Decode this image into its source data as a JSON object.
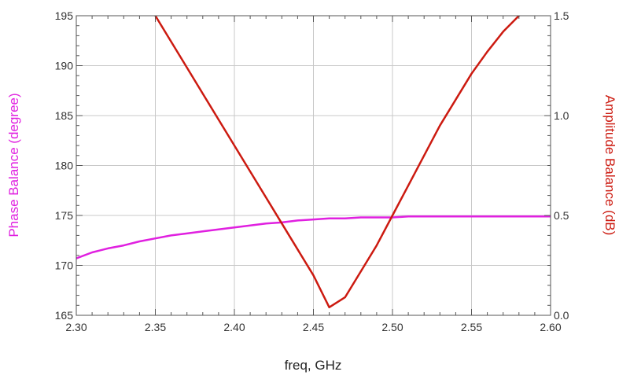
{
  "chart_data": {
    "type": "line",
    "title": "",
    "xlabel": "freq, GHz",
    "ylabel_left": "Phase Balance (degree)",
    "ylabel_right": "Amplitude Balance (dB)",
    "xlim": [
      2.3,
      2.6
    ],
    "ylim_left": [
      165,
      195
    ],
    "ylim_right": [
      0.0,
      1.5
    ],
    "x_ticks": [
      "2.30",
      "2.35",
      "2.40",
      "2.45",
      "2.50",
      "2.55",
      "2.60"
    ],
    "y_left_ticks": [
      "165",
      "170",
      "175",
      "180",
      "185",
      "190",
      "195"
    ],
    "y_right_ticks": [
      "0.0",
      "0.5",
      "1.0",
      "1.5"
    ],
    "grid": true,
    "colors": {
      "phase": "#e020e0",
      "amplitude": "#cc1a10",
      "grid": "#c8c8c8",
      "axis": "#555555"
    },
    "series": [
      {
        "axis": "left",
        "x": [
          2.3,
          2.31,
          2.32,
          2.33,
          2.34,
          2.35,
          2.36,
          2.37,
          2.38,
          2.39,
          2.4,
          2.41,
          2.42,
          2.43,
          2.44,
          2.45,
          2.46,
          2.47,
          2.48,
          2.49,
          2.5,
          2.51,
          2.52,
          2.53,
          2.54,
          2.55,
          2.56,
          2.57,
          2.58,
          2.59,
          2.6
        ],
        "values": [
          170.7,
          171.3,
          171.7,
          172.0,
          172.4,
          172.7,
          173.0,
          173.2,
          173.4,
          173.6,
          173.8,
          174.0,
          174.2,
          174.3,
          174.5,
          174.6,
          174.7,
          174.7,
          174.8,
          174.8,
          174.8,
          174.9,
          174.9,
          174.9,
          174.9,
          174.9,
          174.9,
          174.9,
          174.9,
          174.9,
          174.9
        ]
      },
      {
        "axis": "right",
        "x": [
          2.35,
          2.36,
          2.37,
          2.38,
          2.39,
          2.4,
          2.41,
          2.42,
          2.43,
          2.44,
          2.45,
          2.46,
          2.47,
          2.48,
          2.49,
          2.5,
          2.51,
          2.52,
          2.53,
          2.54,
          2.55,
          2.56,
          2.57,
          2.58,
          2.583
        ],
        "values": [
          1.5,
          1.37,
          1.24,
          1.11,
          0.98,
          0.85,
          0.72,
          0.59,
          0.46,
          0.33,
          0.2,
          0.04,
          0.09,
          0.22,
          0.35,
          0.5,
          0.65,
          0.8,
          0.95,
          1.08,
          1.21,
          1.32,
          1.42,
          1.5,
          1.52
        ]
      }
    ]
  }
}
